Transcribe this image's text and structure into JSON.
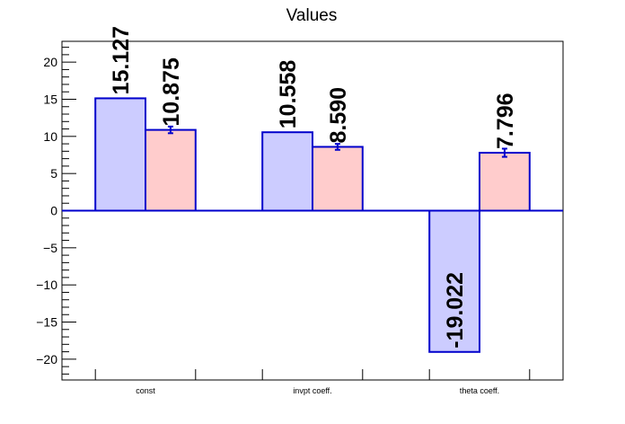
{
  "chart_data": {
    "type": "bar",
    "title": "Values",
    "categories": [
      "const",
      "invpt coeff.",
      "theta coeff."
    ],
    "series": [
      {
        "values": [
          15.127,
          10.558,
          -19.022
        ],
        "fill": "#ccccff",
        "stroke": "#0000cc"
      },
      {
        "values": [
          10.875,
          8.59,
          7.796
        ],
        "errors": [
          0.45,
          0.4,
          0.55
        ],
        "fill": "#ffcccc",
        "stroke": "#0000cc"
      }
    ],
    "data_labels": [
      [
        "15.127",
        "10.558",
        "-19.022"
      ],
      [
        "10.875",
        "8.590",
        "7.796"
      ]
    ],
    "ylim": [
      -22.8,
      22.8
    ],
    "yticks": [
      -20,
      -15,
      -10,
      -5,
      0,
      5,
      10,
      15,
      20
    ],
    "ytick_labels": [
      "−20",
      "−15",
      "−10",
      "−5",
      "0",
      "5",
      "10",
      "15",
      "20"
    ],
    "xlabel": "",
    "ylabel": "",
    "grid": false,
    "legend": "none"
  }
}
